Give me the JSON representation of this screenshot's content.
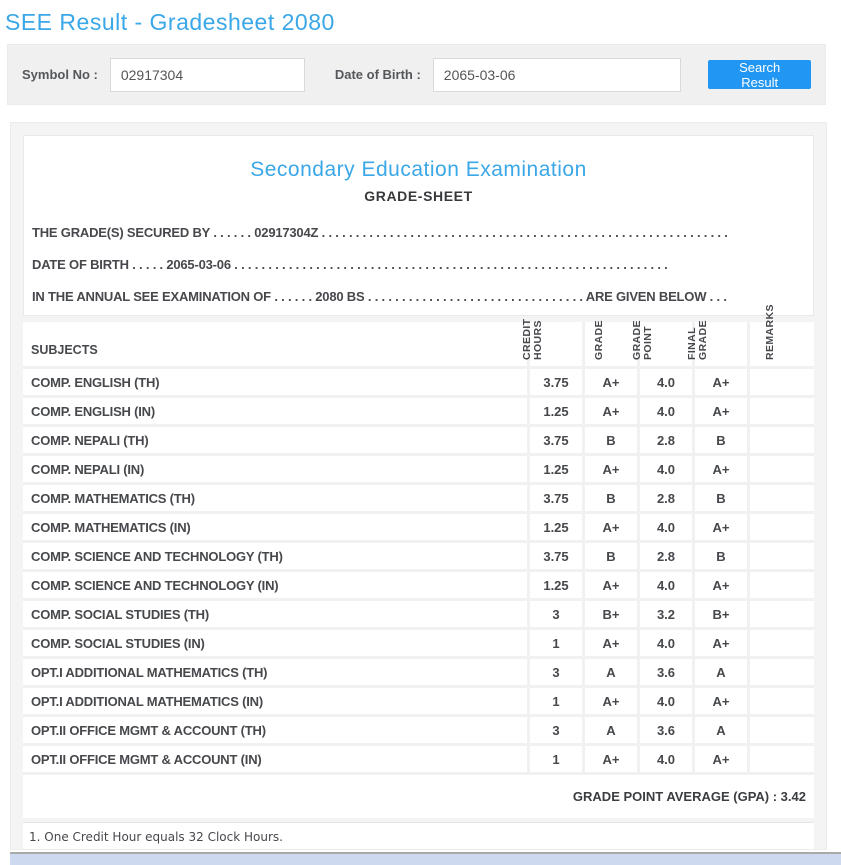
{
  "page_title": "SEE Result - Gradesheet 2080",
  "search": {
    "symbol_label": "Symbol No :",
    "symbol_value": "02917304",
    "dob_label": "Date of Birth :",
    "dob_value": "2065-03-06",
    "button_label": "Search Result"
  },
  "sheet": {
    "title": "Secondary Education Examination",
    "subtitle": "GRADE-SHEET",
    "lines": [
      "THE GRADE(S) SECURED BY . . . . . . 02917304Z . . . . . . . . . . . . . . . . . . . . . . . . . . . . . . . . . . . . . . . . . . . . . . . . . . . . . . . . . . . .",
      "DATE OF BIRTH . . . . . 2065-03-06 . . . . . . . . . . . . . . . . . . . . . . . . . . . . . . . . . . . . . . . . . . . . . . . . . . . . . . . . . . . . . . . .",
      "IN THE ANNUAL SEE EXAMINATION OF . . . . . . 2080 BS . . . . . . . . . . . . . . . . . . . . . . . . . . . . . . . . ARE GIVEN BELOW . . ."
    ],
    "gpa_line": "GRADE POINT AVERAGE (GPA) : 3.42",
    "footnote": "1. One Credit Hour equals 32 Clock Hours."
  },
  "table": {
    "subjects_header": "SUBJECTS",
    "value_headers": [
      "CREDIT\nHOURS",
      "GRADE",
      "GRADE\nPOINT",
      "FINAL\nGRADE",
      "REMARKS"
    ],
    "rows": [
      {
        "subject": "COMP. ENGLISH (TH)",
        "credit": "3.75",
        "grade": "A+",
        "point": "4.0",
        "final": "A+",
        "remarks": ""
      },
      {
        "subject": "COMP. ENGLISH (IN)",
        "credit": "1.25",
        "grade": "A+",
        "point": "4.0",
        "final": "A+",
        "remarks": ""
      },
      {
        "subject": "COMP. NEPALI (TH)",
        "credit": "3.75",
        "grade": "B",
        "point": "2.8",
        "final": "B",
        "remarks": ""
      },
      {
        "subject": "COMP. NEPALI (IN)",
        "credit": "1.25",
        "grade": "A+",
        "point": "4.0",
        "final": "A+",
        "remarks": ""
      },
      {
        "subject": "COMP. MATHEMATICS (TH)",
        "credit": "3.75",
        "grade": "B",
        "point": "2.8",
        "final": "B",
        "remarks": ""
      },
      {
        "subject": "COMP. MATHEMATICS (IN)",
        "credit": "1.25",
        "grade": "A+",
        "point": "4.0",
        "final": "A+",
        "remarks": ""
      },
      {
        "subject": "COMP. SCIENCE AND TECHNOLOGY (TH)",
        "credit": "3.75",
        "grade": "B",
        "point": "2.8",
        "final": "B",
        "remarks": ""
      },
      {
        "subject": "COMP. SCIENCE AND TECHNOLOGY (IN)",
        "credit": "1.25",
        "grade": "A+",
        "point": "4.0",
        "final": "A+",
        "remarks": ""
      },
      {
        "subject": "COMP. SOCIAL STUDIES (TH)",
        "credit": "3",
        "grade": "B+",
        "point": "3.2",
        "final": "B+",
        "remarks": ""
      },
      {
        "subject": "COMP. SOCIAL STUDIES (IN)",
        "credit": "1",
        "grade": "A+",
        "point": "4.0",
        "final": "A+",
        "remarks": ""
      },
      {
        "subject": "OPT.I ADDITIONAL MATHEMATICS (TH)",
        "credit": "3",
        "grade": "A",
        "point": "3.6",
        "final": "A",
        "remarks": ""
      },
      {
        "subject": "OPT.I ADDITIONAL MATHEMATICS (IN)",
        "credit": "1",
        "grade": "A+",
        "point": "4.0",
        "final": "A+",
        "remarks": ""
      },
      {
        "subject": "OPT.II OFFICE MGMT & ACCOUNT (TH)",
        "credit": "3",
        "grade": "A",
        "point": "3.6",
        "final": "A",
        "remarks": ""
      },
      {
        "subject": "OPT.II OFFICE MGMT & ACCOUNT (IN)",
        "credit": "1",
        "grade": "A+",
        "point": "4.0",
        "final": "A+",
        "remarks": ""
      }
    ]
  },
  "colors": {
    "accent_blue": "#3aa7e8",
    "button_blue": "#2196f3",
    "bottom_bar_blue": "#ccd9ef"
  }
}
